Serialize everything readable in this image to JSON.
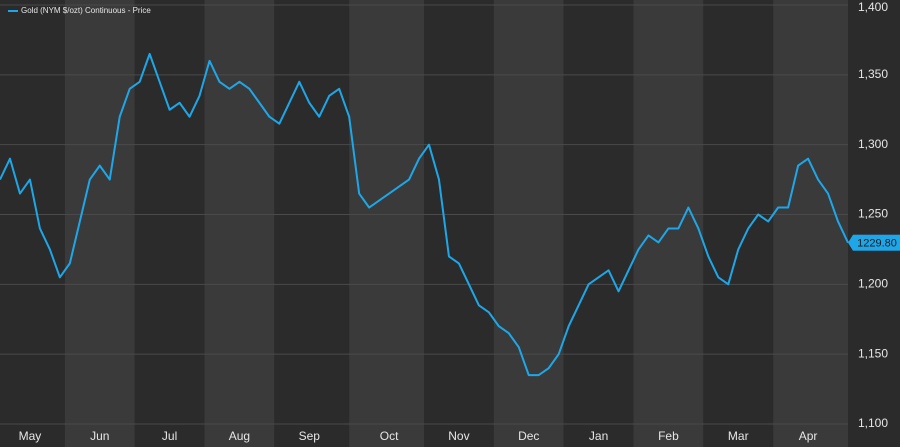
{
  "chart_data": {
    "type": "line",
    "legend": "Gold (NYM $/ozt) Continuous - Price",
    "categories": [
      null,
      null,
      null,
      "May",
      null,
      null,
      null,
      null,
      null,
      null,
      "Jun",
      null,
      null,
      null,
      null,
      null,
      null,
      "Jul",
      null,
      null,
      null,
      null,
      null,
      null,
      "Aug",
      null,
      null,
      null,
      null,
      null,
      null,
      "Sep",
      null,
      null,
      null,
      null,
      null,
      null,
      null,
      "Oct",
      null,
      null,
      null,
      null,
      null,
      null,
      "Nov",
      null,
      null,
      null,
      null,
      null,
      null,
      "Dec",
      null,
      null,
      null,
      null,
      null,
      null,
      "Jan",
      null,
      null,
      null,
      null,
      null,
      null,
      "Feb",
      null,
      null,
      null,
      null,
      null,
      null,
      "Mar",
      null,
      null,
      null,
      null,
      null,
      null,
      "Apr",
      null,
      null,
      null,
      null
    ],
    "series": [
      {
        "name": "Gold (NYM $/ozt) Continuous - Price",
        "color": "#1ea7e8",
        "values": [
          1275,
          1290,
          1265,
          1275,
          1240,
          1225,
          1205,
          1215,
          1245,
          1275,
          1285,
          1275,
          1320,
          1340,
          1345,
          1365,
          1345,
          1325,
          1330,
          1320,
          1335,
          1360,
          1345,
          1340,
          1345,
          1340,
          1330,
          1320,
          1315,
          1330,
          1345,
          1330,
          1320,
          1335,
          1340,
          1320,
          1265,
          1255,
          1260,
          1265,
          1270,
          1275,
          1290,
          1300,
          1275,
          1220,
          1215,
          1200,
          1185,
          1180,
          1170,
          1165,
          1155,
          1135,
          1135,
          1140,
          1150,
          1170,
          1185,
          1200,
          1205,
          1210,
          1195,
          1210,
          1225,
          1235,
          1230,
          1240,
          1240,
          1255,
          1240,
          1220,
          1205,
          1200,
          1225,
          1240,
          1250,
          1245,
          1255,
          1255,
          1285,
          1290,
          1275,
          1265,
          1245,
          1229.8
        ],
        "value_labels": [
          null,
          null,
          null,
          null,
          null,
          null,
          null,
          null,
          null,
          null,
          null,
          null,
          null,
          null,
          null,
          null,
          null,
          null,
          null,
          null,
          null,
          null,
          null,
          null,
          null,
          null,
          null,
          null,
          null,
          null,
          null,
          null,
          null,
          null,
          null,
          null,
          null,
          null,
          null,
          null,
          null,
          null,
          null,
          null,
          null,
          null,
          null,
          null,
          null,
          null,
          null,
          null,
          null,
          null,
          null,
          null,
          null,
          null,
          null,
          null,
          null,
          null,
          null,
          null,
          null,
          null,
          null,
          null,
          null,
          null,
          null,
          null,
          null,
          null,
          null,
          null,
          null,
          null,
          null,
          null,
          null,
          null,
          null,
          null,
          null,
          "1229.80"
        ]
      }
    ],
    "ylim": [
      1100,
      1400
    ],
    "yticks": [
      {
        "value": 1100,
        "label": "1,100"
      },
      {
        "value": 1150,
        "label": "1,150"
      },
      {
        "value": 1200,
        "label": "1,200"
      },
      {
        "value": 1250,
        "label": "1,250"
      },
      {
        "value": 1300,
        "label": "1,300"
      },
      {
        "value": 1350,
        "label": "1,350"
      },
      {
        "value": 1400,
        "label": "1,400"
      }
    ],
    "grid": true
  }
}
